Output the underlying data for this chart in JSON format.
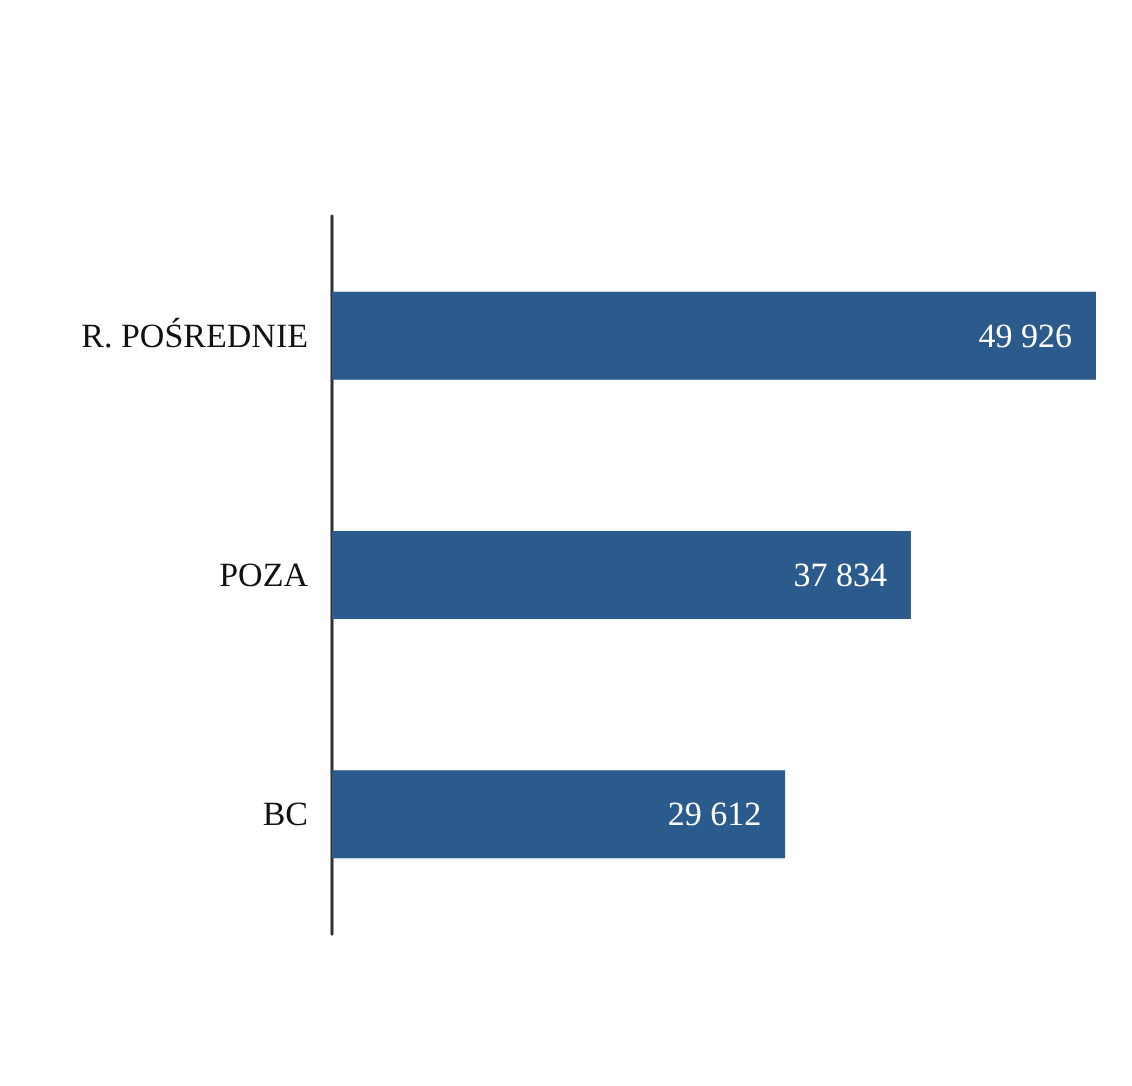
{
  "chart_data": {
    "type": "bar",
    "orientation": "horizontal",
    "categories": [
      "R. POŚREDNIE",
      "POZA",
      "BC"
    ],
    "values": [
      49926,
      37834,
      29612
    ],
    "value_labels": [
      "49 926",
      "37 834",
      "29 612"
    ],
    "color": "#2b5a8c",
    "tick_labels": "y"
  }
}
